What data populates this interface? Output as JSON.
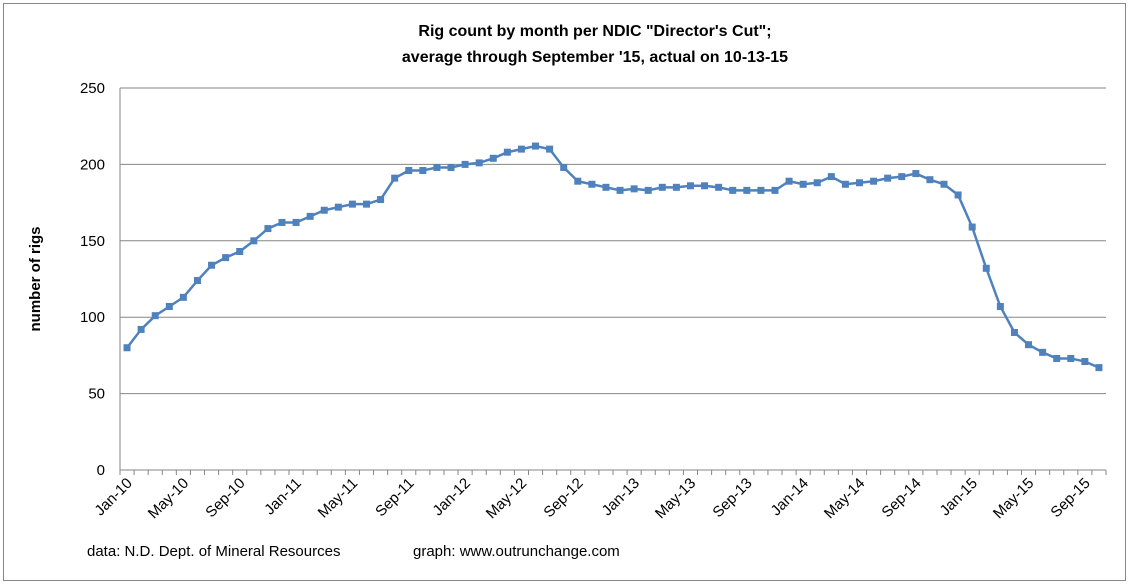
{
  "chart_data": {
    "type": "line",
    "title": [
      "Rig count by month per NDIC \"Director's Cut\";",
      "average through September '15, actual on 10-13-15"
    ],
    "xlabel": "",
    "ylabel": "number of rigs",
    "ylim": [
      0,
      250
    ],
    "yticks": [
      0,
      50,
      100,
      150,
      200,
      250
    ],
    "grid": true,
    "legend": "none",
    "series_color": "#4F81BD",
    "xtick_labels": [
      "Jan-10",
      "May-10",
      "Sep-10",
      "Jan-11",
      "May-11",
      "Sep-11",
      "Jan-12",
      "May-12",
      "Sep-12",
      "Jan-13",
      "May-13",
      "Sep-13",
      "Jan-14",
      "May-14",
      "Sep-14",
      "Jan-15",
      "May-15",
      "Sep-15"
    ],
    "x_start": "Jan-10",
    "x_end": "Oct-15",
    "series": [
      {
        "name": "rig count",
        "values": [
          80,
          92,
          101,
          107,
          113,
          124,
          134,
          139,
          143,
          150,
          158,
          162,
          162,
          166,
          170,
          172,
          174,
          174,
          177,
          191,
          196,
          196,
          198,
          198,
          200,
          201,
          204,
          208,
          210,
          212,
          210,
          198,
          189,
          187,
          185,
          183,
          184,
          183,
          185,
          185,
          186,
          186,
          185,
          183,
          183,
          183,
          183,
          189,
          187,
          188,
          192,
          187,
          188,
          189,
          191,
          192,
          194,
          190,
          187,
          180,
          159,
          132,
          107,
          90,
          82,
          77,
          73,
          73,
          71,
          67
        ]
      }
    ],
    "footnotes": {
      "source": "data: N.D. Dept. of Mineral Resources",
      "credit": "graph:  www.outrunchange.com"
    }
  }
}
